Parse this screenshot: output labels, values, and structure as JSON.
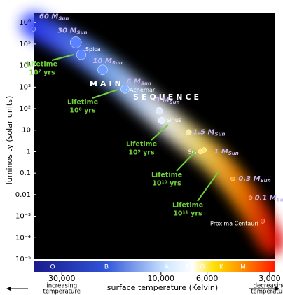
{
  "chart_data": {
    "type": "scatter",
    "ylabel": "luminosity (solar units)",
    "xlabel": "surface temperature (Kelvin)",
    "log_scale": true,
    "ylim": [
      1e-05,
      2900000
    ],
    "yticks": [
      {
        "value": 1000000,
        "label": "10⁶"
      },
      {
        "value": 100000,
        "label": "10⁵"
      },
      {
        "value": 10000,
        "label": "10⁴"
      },
      {
        "value": 1000,
        "label": "10³"
      },
      {
        "value": 100,
        "label": "10²"
      },
      10,
      1,
      0.1,
      0.01,
      {
        "value": 0.001,
        "label": "10⁻³"
      },
      {
        "value": 0.0001,
        "label": "10⁻⁴"
      },
      {
        "value": 1e-05,
        "label": "10⁻⁵"
      }
    ],
    "xlim": [
      41000,
      2840
    ],
    "xticks": [
      {
        "value": 30000,
        "label": "30,000"
      },
      {
        "value": 10000,
        "label": "10,000"
      },
      {
        "value": 6000,
        "label": "6,000"
      },
      {
        "value": 3000,
        "label": "3,000"
      }
    ],
    "x_notes": [
      [
        "increasing",
        "temperature"
      ],
      [
        "decreasing",
        "temperature"
      ]
    ],
    "spectral_classes": [
      "O",
      "B",
      "A",
      "F",
      "G",
      "K",
      "M"
    ],
    "sequence_label": [
      "MAIN",
      "SEQUENCE"
    ],
    "stars": [
      {
        "name": "60 M",
        "sub": "Sun",
        "temperature": 41000,
        "luminosity": 500000
      },
      {
        "name": "30 M",
        "sub": "Sun",
        "temperature": 25700,
        "luminosity": 120000
      },
      {
        "name": "Spica",
        "temperature": 24200,
        "luminosity": 32000
      },
      {
        "name": "10 M",
        "sub": "Sun",
        "temperature": 19100,
        "luminosity": 6300
      },
      {
        "name": "6 M",
        "sub": "Sun",
        "temperature": 14900,
        "luminosity": 800
      },
      {
        "name": "Achernar",
        "temperature": 14600,
        "luminosity": 750
      },
      {
        "name": "3 M",
        "sub": "Sun",
        "temperature": 10200,
        "luminosity": 80
      },
      {
        "name": "Sirius",
        "temperature": 9900,
        "luminosity": 28
      },
      {
        "name": "1.5 M",
        "sub": "Sun",
        "temperature": 7360,
        "luminosity": 8
      },
      {
        "name": "Sun",
        "temperature": 6450,
        "luminosity": 1
      },
      {
        "name": "1 M",
        "sub": "Sun",
        "temperature": 6200,
        "luminosity": 1.2
      },
      {
        "name": "0.3 M",
        "sub": "Sun",
        "temperature": 4510,
        "luminosity": 0.055
      },
      {
        "name": "0.1 M",
        "sub": "Sun",
        "temperature": 3710,
        "luminosity": 0.0072
      },
      {
        "name": "Proxima Centauri",
        "temperature": 3240,
        "luminosity": 0.0006
      }
    ],
    "lifetimes": [
      {
        "text": "Lifetime",
        "value": "10⁷ yrs"
      },
      {
        "text": "Lifetime",
        "value": "10⁸ yrs"
      },
      {
        "text": "Lifetime",
        "value": "10⁹ yrs"
      },
      {
        "text": "Lifetime",
        "value": "10¹⁰ yrs"
      },
      {
        "text": "Lifetime",
        "value": "10¹¹ yrs"
      }
    ]
  }
}
